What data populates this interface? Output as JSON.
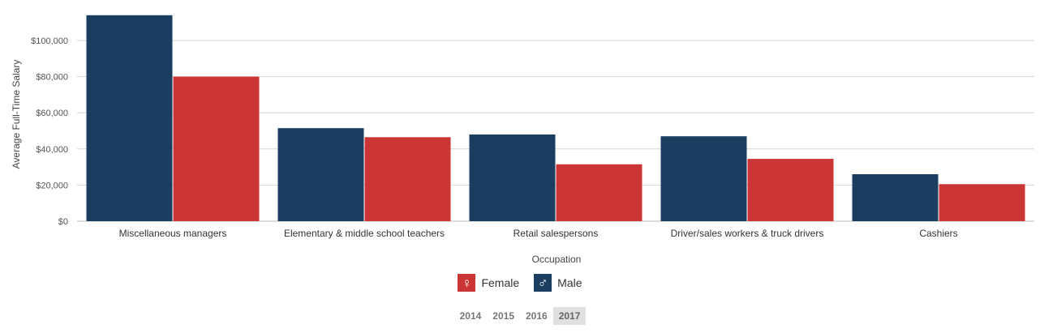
{
  "chart_data": {
    "type": "bar",
    "categories": [
      "Miscellaneous managers",
      "Elementary & middle school teachers",
      "Retail salespersons",
      "Driver/sales workers & truck drivers",
      "Cashiers"
    ],
    "series": [
      {
        "name": "Male",
        "color": "#1b3d60",
        "values": [
          114000,
          51500,
          48000,
          47000,
          26000
        ]
      },
      {
        "name": "Female",
        "color": "#cc3535",
        "values": [
          80000,
          46500,
          31500,
          34500,
          20500
        ]
      }
    ],
    "xlabel": "Occupation",
    "ylabel": "Average Full-Time Salary",
    "ylim": [
      0,
      110000
    ],
    "yticks": [
      {
        "value": 0,
        "label": "$0"
      },
      {
        "value": 20000,
        "label": "$20,000"
      },
      {
        "value": 40000,
        "label": "$40,000"
      },
      {
        "value": 60000,
        "label": "$60,000"
      },
      {
        "value": 80000,
        "label": "$80,000"
      },
      {
        "value": 100000,
        "label": "$100,000"
      }
    ],
    "grid": true,
    "legend_position": "bottom-center"
  },
  "legend": {
    "items": [
      {
        "label": "Female",
        "icon": "female-symbol-icon",
        "glyph": "♀",
        "color": "#cc3535"
      },
      {
        "label": "Male",
        "icon": "male-symbol-icon",
        "glyph": "♂",
        "color": "#1b3d60"
      }
    ]
  },
  "years": {
    "options": [
      "2014",
      "2015",
      "2016",
      "2017"
    ],
    "selected": "2017"
  }
}
